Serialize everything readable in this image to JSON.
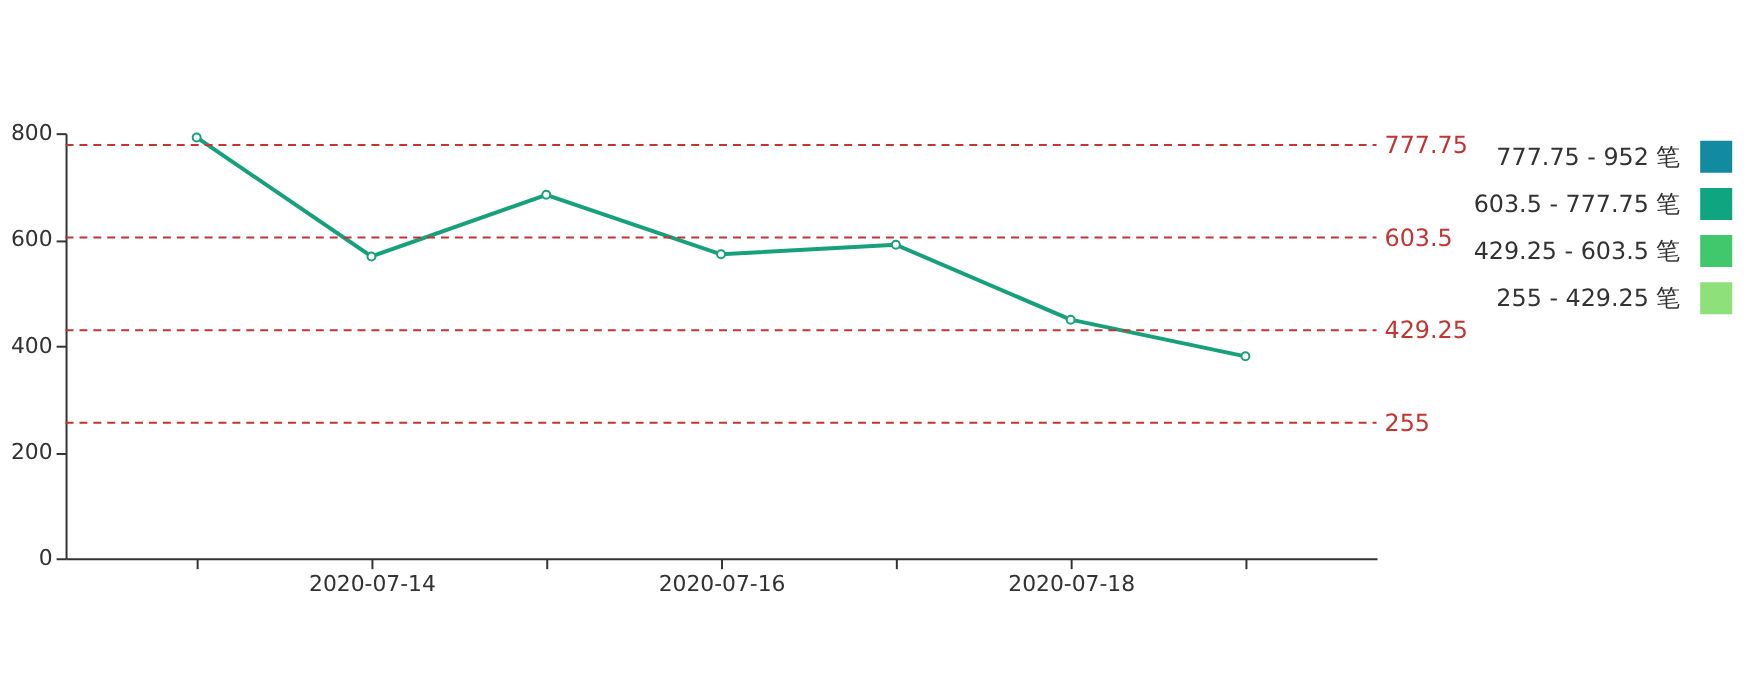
{
  "chart_data": [
    {
      "type": "line",
      "categories": [
        null,
        "2020-07-14",
        null,
        "2020-07-16",
        null,
        "2020-07-18",
        null
      ],
      "series": [
        {
          "color": "#17a07c",
          "values": [
            792,
            568,
            684,
            572,
            590,
            449,
            380
          ]
        }
      ],
      "ylim": [
        0,
        800
      ],
      "yticks": [
        0,
        200,
        400,
        600,
        800
      ],
      "grid": false,
      "marker": "circle",
      "line_style": "solid",
      "legend": "top right",
      "ref_lines": [
        {
          "axis": "y",
          "value": 777.75,
          "label": "777.75",
          "color": "#c23531",
          "line_style": "dashed"
        },
        {
          "axis": "y",
          "value": 603.5,
          "label": "603.5",
          "color": "#c23531",
          "line_style": "dashed"
        },
        {
          "axis": "y",
          "value": 429.25,
          "label": "429.25",
          "color": "#c23531",
          "line_style": "dashed"
        },
        {
          "axis": "y",
          "value": 255,
          "label": "255",
          "color": "#c23531",
          "line_style": "dashed"
        }
      ]
    },
    {
      "type": "other",
      "categories": [
        "777.75 - 952 笔",
        "603.5 - 777.75 笔",
        "429.25 - 603.5 笔",
        "255 - 429.25 笔"
      ],
      "colors": [
        "#128ba0",
        "#0ea580",
        "#41c86c",
        "#8ee07a"
      ]
    }
  ]
}
